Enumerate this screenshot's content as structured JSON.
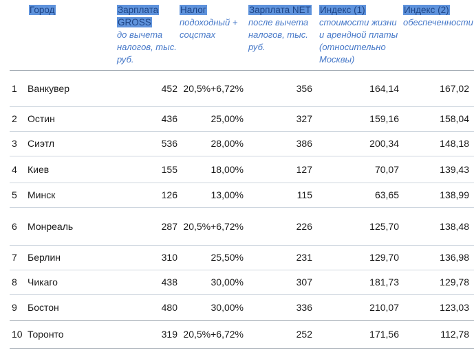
{
  "chart_data": {
    "type": "table",
    "columns": [
      {
        "key": "num",
        "label": "",
        "sub": ""
      },
      {
        "key": "city",
        "label": "Город",
        "sub": ""
      },
      {
        "key": "gross",
        "label": "Зарплата GROSS",
        "sub": "до вычета налогов, тыс. руб."
      },
      {
        "key": "tax",
        "label": "Налог",
        "sub": "подоходный + соцстах"
      },
      {
        "key": "net",
        "label": "Зарплата NET",
        "sub": "после вычета налогов, тыс. руб."
      },
      {
        "key": "index1",
        "label": "Индекс (1)",
        "sub": "стоимости жизни и арендной платы (относительно Москвы)"
      },
      {
        "key": "index2",
        "label": "Индекс (2)",
        "sub": "обеспеченности"
      }
    ],
    "rows": [
      {
        "num": "1",
        "city": "Ванкувер",
        "gross": "452",
        "tax": "20,5%+6,72%",
        "net": "356",
        "index1": "164,14",
        "index2": "167,02"
      },
      {
        "num": "2",
        "city": "Остин",
        "gross": "436",
        "tax": "25,00%",
        "net": "327",
        "index1": "159,16",
        "index2": "158,04"
      },
      {
        "num": "3",
        "city": "Сиэтл",
        "gross": "536",
        "tax": "28,00%",
        "net": "386",
        "index1": "200,34",
        "index2": "148,18"
      },
      {
        "num": "4",
        "city": "Киев",
        "gross": "155",
        "tax": "18,00%",
        "net": "127",
        "index1": "70,07",
        "index2": "139,43"
      },
      {
        "num": "5",
        "city": "Минск",
        "gross": "126",
        "tax": "13,00%",
        "net": "115",
        "index1": "63,65",
        "index2": "138,99"
      },
      {
        "num": "6",
        "city": "Монреаль",
        "gross": "287",
        "tax": "20,5%+6,72%",
        "net": "226",
        "index1": "125,70",
        "index2": "138,48"
      },
      {
        "num": "7",
        "city": "Берлин",
        "gross": "310",
        "tax": "25,50%",
        "net": "231",
        "index1": "129,70",
        "index2": "136,98"
      },
      {
        "num": "8",
        "city": "Чикаго",
        "gross": "438",
        "tax": "30,00%",
        "net": "307",
        "index1": "181,73",
        "index2": "129,78"
      },
      {
        "num": "9",
        "city": "Бостон",
        "gross": "480",
        "tax": "30,00%",
        "net": "336",
        "index1": "210,07",
        "index2": "123,03"
      },
      {
        "num": "10",
        "city": "Торонто",
        "gross": "319",
        "tax": "20,5%+6,72%",
        "net": "252",
        "index1": "171,56",
        "index2": "112,78"
      }
    ],
    "notes": {
      "header_highlight": "main column labels shown with blue text-selection highlight",
      "units": "salaries in thousands of rubles"
    }
  },
  "colors": {
    "selection_background": "#5f93dc",
    "selection_text": "#1d4486",
    "subheader_text": "#4678c8",
    "row_border": "#cdd5de",
    "section_border": "#9aa3ac",
    "data_text": "#1a1a1a",
    "page_background": "#ffffff"
  }
}
